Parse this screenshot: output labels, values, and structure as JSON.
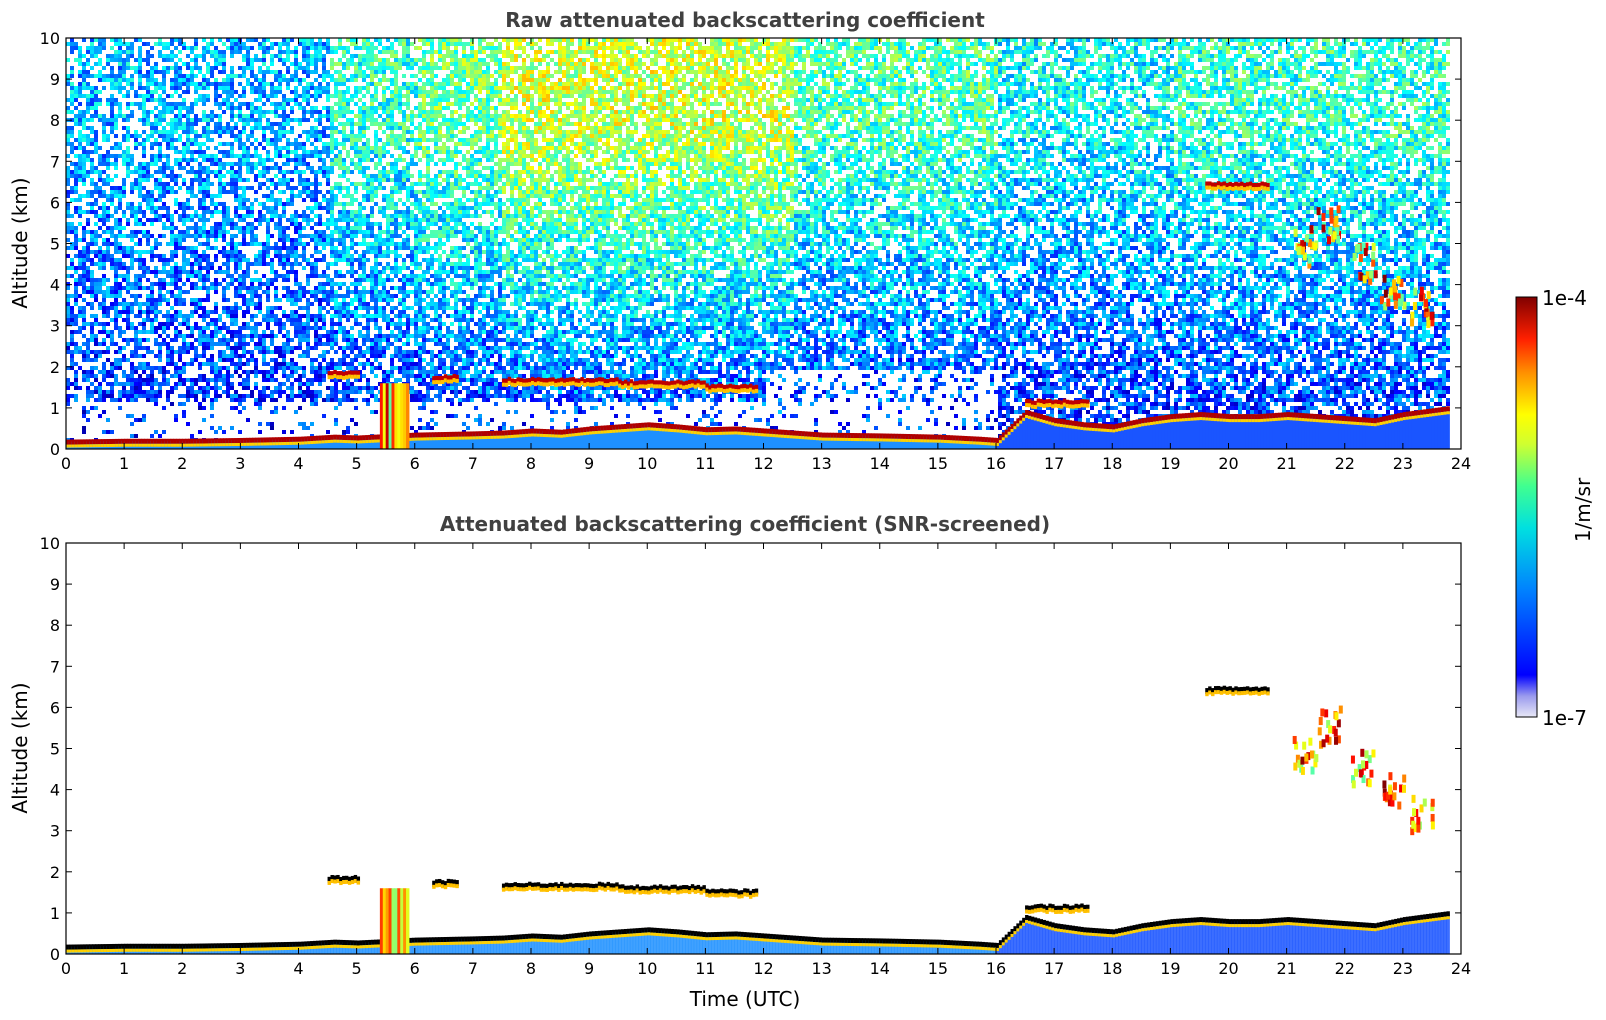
{
  "chart_data": [
    {
      "type": "heatmap",
      "title": "Raw attenuated backscattering coefficient",
      "xlabel": "",
      "ylabel": "Altitude (km)",
      "xlim": [
        0,
        24
      ],
      "ylim": [
        0,
        10
      ],
      "xticks": [
        "0",
        "1",
        "2",
        "3",
        "4",
        "5",
        "6",
        "7",
        "8",
        "9",
        "10",
        "11",
        "12",
        "13",
        "14",
        "15",
        "16",
        "17",
        "18",
        "19",
        "20",
        "21",
        "22",
        "23",
        "24"
      ],
      "yticks": [
        "0",
        "1",
        "2",
        "3",
        "4",
        "5",
        "6",
        "7",
        "8",
        "9",
        "10"
      ],
      "data_end_time": 23.8,
      "surface_layer_top_km": [
        [
          0,
          0.18
        ],
        [
          1,
          0.2
        ],
        [
          2,
          0.2
        ],
        [
          3,
          0.22
        ],
        [
          4,
          0.25
        ],
        [
          4.6,
          0.3
        ],
        [
          5,
          0.28
        ],
        [
          6,
          0.35
        ],
        [
          7,
          0.38
        ],
        [
          7.5,
          0.4
        ],
        [
          8,
          0.45
        ],
        [
          8.5,
          0.42
        ],
        [
          9,
          0.5
        ],
        [
          9.5,
          0.55
        ],
        [
          10,
          0.6
        ],
        [
          10.5,
          0.55
        ],
        [
          11,
          0.48
        ],
        [
          11.5,
          0.5
        ],
        [
          12,
          0.45
        ],
        [
          13,
          0.35
        ],
        [
          14,
          0.33
        ],
        [
          15,
          0.3
        ],
        [
          15.7,
          0.25
        ],
        [
          16,
          0.22
        ],
        [
          16.5,
          0.9
        ],
        [
          17,
          0.7
        ],
        [
          17.5,
          0.6
        ],
        [
          18,
          0.55
        ],
        [
          18.5,
          0.7
        ],
        [
          19,
          0.8
        ],
        [
          19.5,
          0.85
        ],
        [
          20,
          0.8
        ],
        [
          20.5,
          0.8
        ],
        [
          21,
          0.85
        ],
        [
          21.5,
          0.8
        ],
        [
          22,
          0.75
        ],
        [
          22.5,
          0.7
        ],
        [
          23,
          0.85
        ],
        [
          23.8,
          1.0
        ]
      ],
      "cloud_layers": [
        {
          "t0": 4.5,
          "t1": 5.0,
          "alt_km": 1.85,
          "intensity": 1.0
        },
        {
          "t0": 6.3,
          "t1": 6.7,
          "alt_km": 1.75,
          "intensity": 0.8
        },
        {
          "t0": 7.5,
          "t1": 9.5,
          "alt_km": 1.68,
          "intensity": 1.0
        },
        {
          "t0": 9.5,
          "t1": 11.0,
          "alt_km": 1.62,
          "intensity": 0.9
        },
        {
          "t0": 11.0,
          "t1": 11.9,
          "alt_km": 1.52,
          "intensity": 0.8
        },
        {
          "t0": 16.5,
          "t1": 17.6,
          "alt_km": 1.15,
          "intensity": 0.9
        },
        {
          "t0": 19.6,
          "t1": 20.7,
          "alt_km": 6.45,
          "intensity": 1.0
        }
      ],
      "precipitation_shafts": [
        {
          "t0": 5.4,
          "t1": 5.85,
          "alt_top_km": 1.6
        }
      ],
      "descending_cloud": [
        {
          "t": 21.3,
          "alt_km": 5.0
        },
        {
          "t": 21.7,
          "alt_km": 5.6
        },
        {
          "t": 22.3,
          "alt_km": 4.6
        },
        {
          "t": 22.8,
          "alt_km": 4.0
        },
        {
          "t": 23.3,
          "alt_km": 3.5
        }
      ],
      "noise_background": [
        {
          "t0": 0,
          "t1": 4.5,
          "level": 0.25
        },
        {
          "t0": 4.5,
          "t1": 6.0,
          "level": 0.45
        },
        {
          "t0": 6.0,
          "t1": 7.5,
          "level": 0.55
        },
        {
          "t0": 7.5,
          "t1": 12.5,
          "level": 0.7
        },
        {
          "t0": 12.5,
          "t1": 16.0,
          "level": 0.5
        },
        {
          "t0": 16.0,
          "t1": 19.0,
          "level": 0.38
        },
        {
          "t0": 19.0,
          "t1": 23.8,
          "level": 0.45
        }
      ]
    },
    {
      "type": "heatmap",
      "title": "Attenuated backscattering coefficient (SNR-screened)",
      "xlabel": "Time (UTC)",
      "ylabel": "Altitude (km)",
      "xlim": [
        0,
        24
      ],
      "ylim": [
        0,
        10
      ],
      "xticks": [
        "0",
        "1",
        "2",
        "3",
        "4",
        "5",
        "6",
        "7",
        "8",
        "9",
        "10",
        "11",
        "12",
        "13",
        "14",
        "15",
        "16",
        "17",
        "18",
        "19",
        "20",
        "21",
        "22",
        "23",
        "24"
      ],
      "yticks": [
        "0",
        "1",
        "2",
        "3",
        "4",
        "5",
        "6",
        "7",
        "8",
        "9",
        "10"
      ],
      "screened": true
    }
  ],
  "colorbar": {
    "label": "1/m/sr",
    "max_label": "1e-4",
    "min_label": "1e-7",
    "scale": "log",
    "colormap": "jet"
  }
}
